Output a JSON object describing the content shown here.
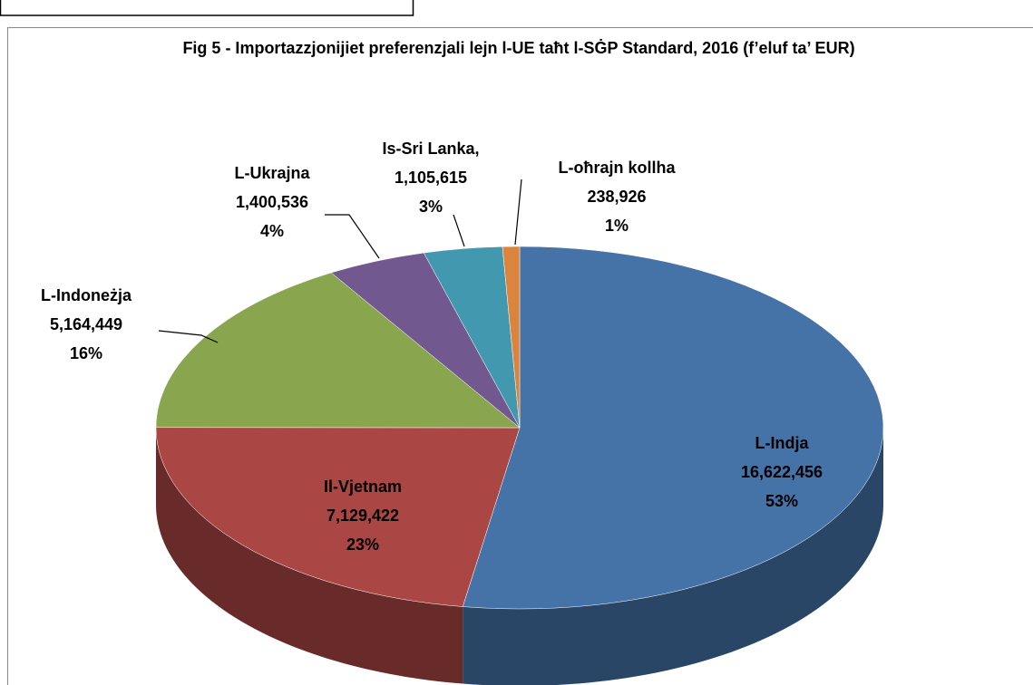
{
  "chart_data": {
    "type": "pie3d",
    "title": "Fig 5 - Importazzjonijiet preferenzjali lejn l-UE taħt l-SĠP Standard, 2016 (f’eluf ta’ EUR)",
    "categories": [
      "L-Indja",
      "Il-Vjetnam",
      "L-Indoneżja",
      "L-Ukrajna",
      "Is-Sri Lanka,",
      "L-oħrajn kollha"
    ],
    "values": [
      16622456,
      7129422,
      5164449,
      1400536,
      1105615,
      238926
    ],
    "value_labels": [
      "16,622,456",
      "7,129,422",
      "5,164,449",
      "1,400,536",
      "1,105,615",
      "238,926"
    ],
    "percents": [
      53,
      23,
      16,
      4,
      3,
      1
    ],
    "percent_labels": [
      "53%",
      "23%",
      "16%",
      "4%",
      "3%",
      "1%"
    ],
    "colors": [
      "#4572a7",
      "#aa4643",
      "#89a54e",
      "#71588f",
      "#4198af",
      "#db843d"
    ]
  }
}
